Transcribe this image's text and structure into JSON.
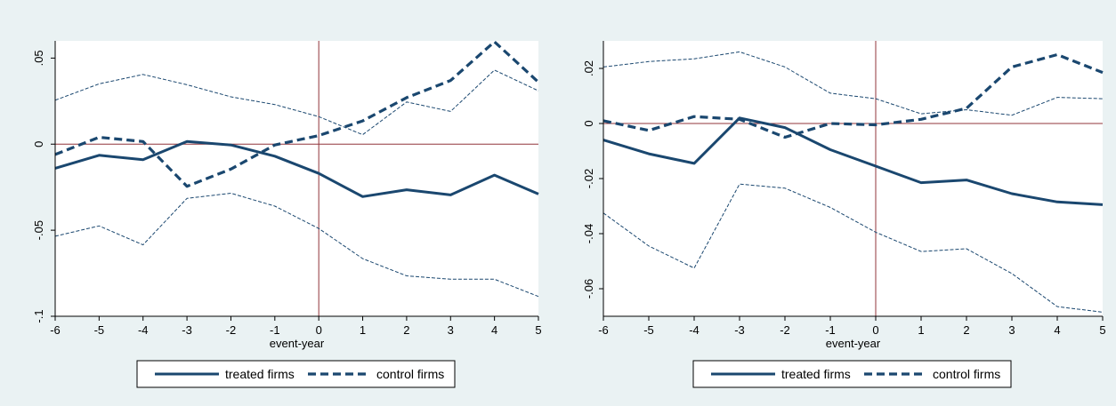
{
  "colors": {
    "background": "#eaf2f3",
    "plot_area": "#ffffff",
    "series": "#1a476f",
    "reference_line": "#90353b"
  },
  "chart_data": [
    {
      "type": "line",
      "title": "",
      "xlabel": "event-year",
      "ylabel": "",
      "x": [
        -6,
        -5,
        -4,
        -3,
        -2,
        -1,
        0,
        1,
        2,
        3,
        4,
        5
      ],
      "xlim": [
        -6,
        5
      ],
      "ylim": [
        -0.1,
        0.06
      ],
      "y_ticks": [
        0.05,
        0,
        -0.05,
        -0.1
      ],
      "y_tick_labels": [
        ".05",
        "0",
        "-.05",
        "-.1"
      ],
      "x_tick_labels": [
        "-6",
        "-5",
        "-4",
        "-3",
        "-2",
        "-1",
        "0",
        "1",
        "2",
        "3",
        "4",
        "5"
      ],
      "reference_lines": {
        "x": 0,
        "y": 0
      },
      "grid": false,
      "legend_position": "bottom",
      "legend": [
        "treated firms",
        "control firms"
      ],
      "series": [
        {
          "name": "treated firms",
          "style": "solid-thick",
          "values": [
            -0.014,
            -0.0065,
            -0.009,
            0.0015,
            -0.0005,
            -0.007,
            -0.017,
            -0.0305,
            -0.0265,
            -0.0295,
            -0.018,
            -0.029
          ]
        },
        {
          "name": "control firms",
          "style": "dashed-thick",
          "values": [
            -0.006,
            0.004,
            0.0015,
            -0.0245,
            -0.0145,
            -0.0005,
            0.005,
            0.0135,
            0.027,
            0.037,
            0.0595,
            0.036
          ]
        },
        {
          "style": "dashed-thin",
          "values": [
            0.0255,
            0.035,
            0.0405,
            0.0345,
            0.0275,
            0.023,
            0.016,
            0.0055,
            0.0245,
            0.019,
            0.043,
            0.031
          ]
        },
        {
          "style": "dashed-thin",
          "values": [
            -0.0535,
            -0.0475,
            -0.0585,
            -0.0315,
            -0.0285,
            -0.036,
            -0.049,
            -0.0665,
            -0.0765,
            -0.0785,
            -0.0785,
            -0.0885
          ]
        }
      ]
    },
    {
      "type": "line",
      "title": "",
      "xlabel": "event-year",
      "ylabel": "",
      "x": [
        -6,
        -5,
        -4,
        -3,
        -2,
        -1,
        0,
        1,
        2,
        3,
        4,
        5
      ],
      "xlim": [
        -6,
        5
      ],
      "ylim": [
        -0.07,
        0.03
      ],
      "y_ticks": [
        0.02,
        0,
        -0.02,
        -0.04,
        -0.06
      ],
      "y_tick_labels": [
        ".02",
        "0",
        "-.02",
        "-.04",
        "-.06"
      ],
      "x_tick_labels": [
        "-6",
        "-5",
        "-4",
        "-3",
        "-2",
        "-1",
        "0",
        "1",
        "2",
        "3",
        "4",
        "5"
      ],
      "reference_lines": {
        "x": 0,
        "y": 0
      },
      "grid": false,
      "legend_position": "bottom",
      "legend": [
        "treated firms",
        "control firms"
      ],
      "series": [
        {
          "name": "treated firms",
          "style": "solid-thick",
          "values": [
            -0.006,
            -0.011,
            -0.0145,
            0.002,
            -0.0015,
            -0.0095,
            -0.0155,
            -0.0215,
            -0.0205,
            -0.0255,
            -0.0285,
            -0.0295
          ]
        },
        {
          "name": "control firms",
          "style": "dashed-thick",
          "values": [
            0.001,
            -0.0025,
            0.0025,
            0.0015,
            -0.005,
            0.0,
            -0.0005,
            0.0015,
            0.0055,
            0.0205,
            0.025,
            0.0185
          ]
        },
        {
          "style": "dashed-thin",
          "values": [
            0.0205,
            0.0225,
            0.0235,
            0.026,
            0.0205,
            0.011,
            0.009,
            0.0035,
            0.005,
            0.003,
            0.0095,
            0.009
          ]
        },
        {
          "style": "dashed-thin",
          "values": [
            -0.0325,
            -0.0445,
            -0.0525,
            -0.022,
            -0.0235,
            -0.0305,
            -0.0395,
            -0.0465,
            -0.0455,
            -0.0545,
            -0.0665,
            -0.0685
          ]
        }
      ]
    }
  ]
}
